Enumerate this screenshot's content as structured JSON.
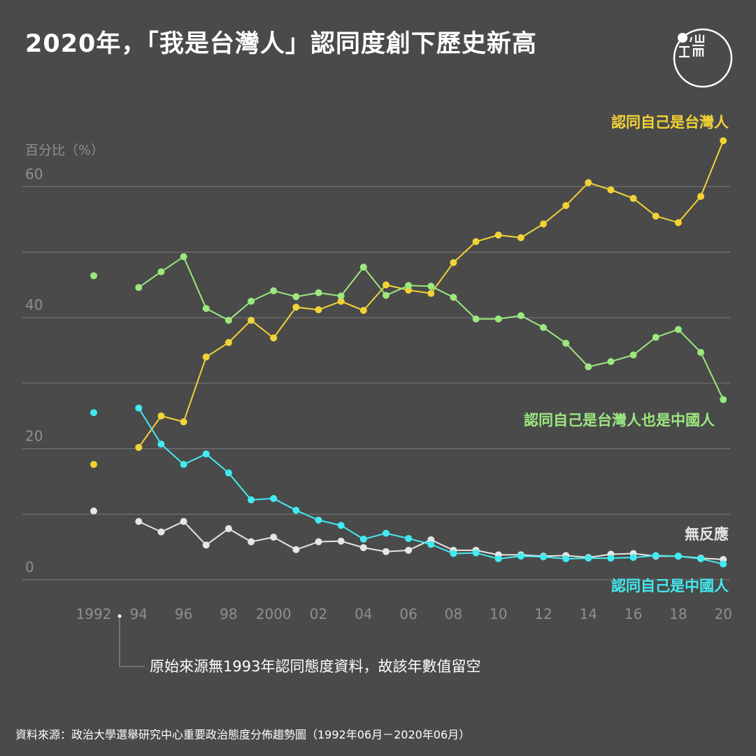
{
  "title": "2020年，「我是台灣人」認同度創下歷史新高",
  "logo": {
    "icon": "initium-logo-icon",
    "text": "端"
  },
  "colors": {
    "background": "#4a4a4a",
    "taiwanese": "#f2d335",
    "both": "#9be87f",
    "nonresponse": "#e6e6e6",
    "chinese": "#41ebf0",
    "grid": "#7a7a7a",
    "axis_text": "#8f8f8f"
  },
  "footnote": "原始來源無1993年認同態度資料，故該年數值留空",
  "source": "資料來源：政治大學選舉研究中心重要政治態度分佈趨勢圖（1992年06月－2020年06月）",
  "chart_data": {
    "type": "line",
    "ylabel": "百分比（%）",
    "ylim": [
      0,
      60
    ],
    "y_ticks": [
      {
        "value": 0,
        "label": "0"
      },
      {
        "value": 10,
        "label": ""
      },
      {
        "value": 20,
        "label": "20"
      },
      {
        "value": 30,
        "label": ""
      },
      {
        "value": 40,
        "label": "40"
      },
      {
        "value": 50,
        "label": ""
      },
      {
        "value": 60,
        "label": "60"
      }
    ],
    "x_ticks": [
      {
        "value": 1992,
        "label": "1992"
      },
      {
        "value": 1994,
        "label": "94"
      },
      {
        "value": 1996,
        "label": "96"
      },
      {
        "value": 1998,
        "label": "98"
      },
      {
        "value": 2000,
        "label": "2000"
      },
      {
        "value": 2002,
        "label": "02"
      },
      {
        "value": 2004,
        "label": "04"
      },
      {
        "value": 2006,
        "label": "06"
      },
      {
        "value": 2008,
        "label": "08"
      },
      {
        "value": 2010,
        "label": "10"
      },
      {
        "value": 2012,
        "label": "12"
      },
      {
        "value": 2014,
        "label": "14"
      },
      {
        "value": 2016,
        "label": "16"
      },
      {
        "value": 2018,
        "label": "18"
      },
      {
        "value": 2020,
        "label": "20"
      }
    ],
    "x": [
      1992,
      1994,
      1995,
      1996,
      1997,
      1998,
      1999,
      2000,
      2001,
      2002,
      2003,
      2004,
      2005,
      2006,
      2007,
      2008,
      2009,
      2010,
      2011,
      2012,
      2013,
      2014,
      2015,
      2016,
      2017,
      2018,
      2019,
      2020
    ],
    "series": [
      {
        "name": "認同自己是台灣人",
        "color_key": "taiwanese",
        "values": [
          17.6,
          20.2,
          25.0,
          24.1,
          34.0,
          36.2,
          39.6,
          36.9,
          41.6,
          41.2,
          42.5,
          41.1,
          45.0,
          44.2,
          43.7,
          48.4,
          51.6,
          52.6,
          52.2,
          54.3,
          57.1,
          60.6,
          59.5,
          58.2,
          55.5,
          54.5,
          58.5,
          67.0
        ]
      },
      {
        "name": "認同自己是台灣人也是中國人",
        "color_key": "both",
        "values": [
          46.4,
          44.6,
          47.0,
          49.3,
          41.4,
          39.6,
          42.5,
          44.1,
          43.2,
          43.8,
          43.3,
          47.7,
          43.4,
          44.9,
          44.8,
          43.1,
          39.8,
          39.8,
          40.3,
          38.5,
          36.1,
          32.5,
          33.3,
          34.3,
          37.0,
          38.2,
          34.7,
          27.5
        ]
      },
      {
        "name": "無反應",
        "color_key": "nonresponse",
        "values": [
          10.5,
          8.9,
          7.3,
          8.9,
          5.3,
          7.8,
          5.8,
          6.5,
          4.6,
          5.8,
          5.9,
          4.9,
          4.3,
          4.5,
          6.1,
          4.5,
          4.5,
          3.8,
          3.8,
          3.6,
          3.7,
          3.4,
          3.9,
          4.0,
          3.6,
          3.6,
          3.3,
          3.1
        ]
      },
      {
        "name": "認同自己是中國人",
        "color_key": "chinese",
        "values": [
          25.5,
          26.2,
          20.7,
          17.6,
          19.2,
          16.3,
          12.2,
          12.4,
          10.6,
          9.1,
          8.3,
          6.2,
          7.1,
          6.3,
          5.4,
          4.0,
          4.1,
          3.2,
          3.6,
          3.5,
          3.2,
          3.3,
          3.3,
          3.4,
          3.7,
          3.6,
          3.2,
          2.4
        ]
      }
    ],
    "legend_placement": "inline-right",
    "grid": true
  }
}
